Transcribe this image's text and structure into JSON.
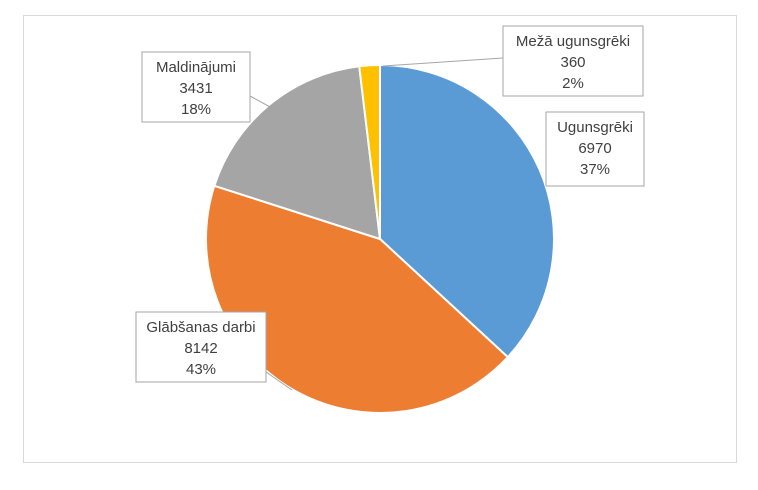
{
  "chart_data": {
    "type": "pie",
    "title": "",
    "slices": [
      {
        "category": "Ugunsgrēki",
        "value": 6970,
        "percent": "37%",
        "color": "#5b9bd5"
      },
      {
        "category": "Glābšanas darbi",
        "value": 8142,
        "percent": "43%",
        "color": "#ed7d31"
      },
      {
        "category": "Maldinājumi",
        "value": 3431,
        "percent": "18%",
        "color": "#a5a5a5"
      },
      {
        "category": "Mežā ugunsgrēki",
        "value": 360,
        "percent": "2%",
        "color": "#ffc000"
      }
    ],
    "data_labels": "callouts showing category, value and percent",
    "legend": "none"
  }
}
